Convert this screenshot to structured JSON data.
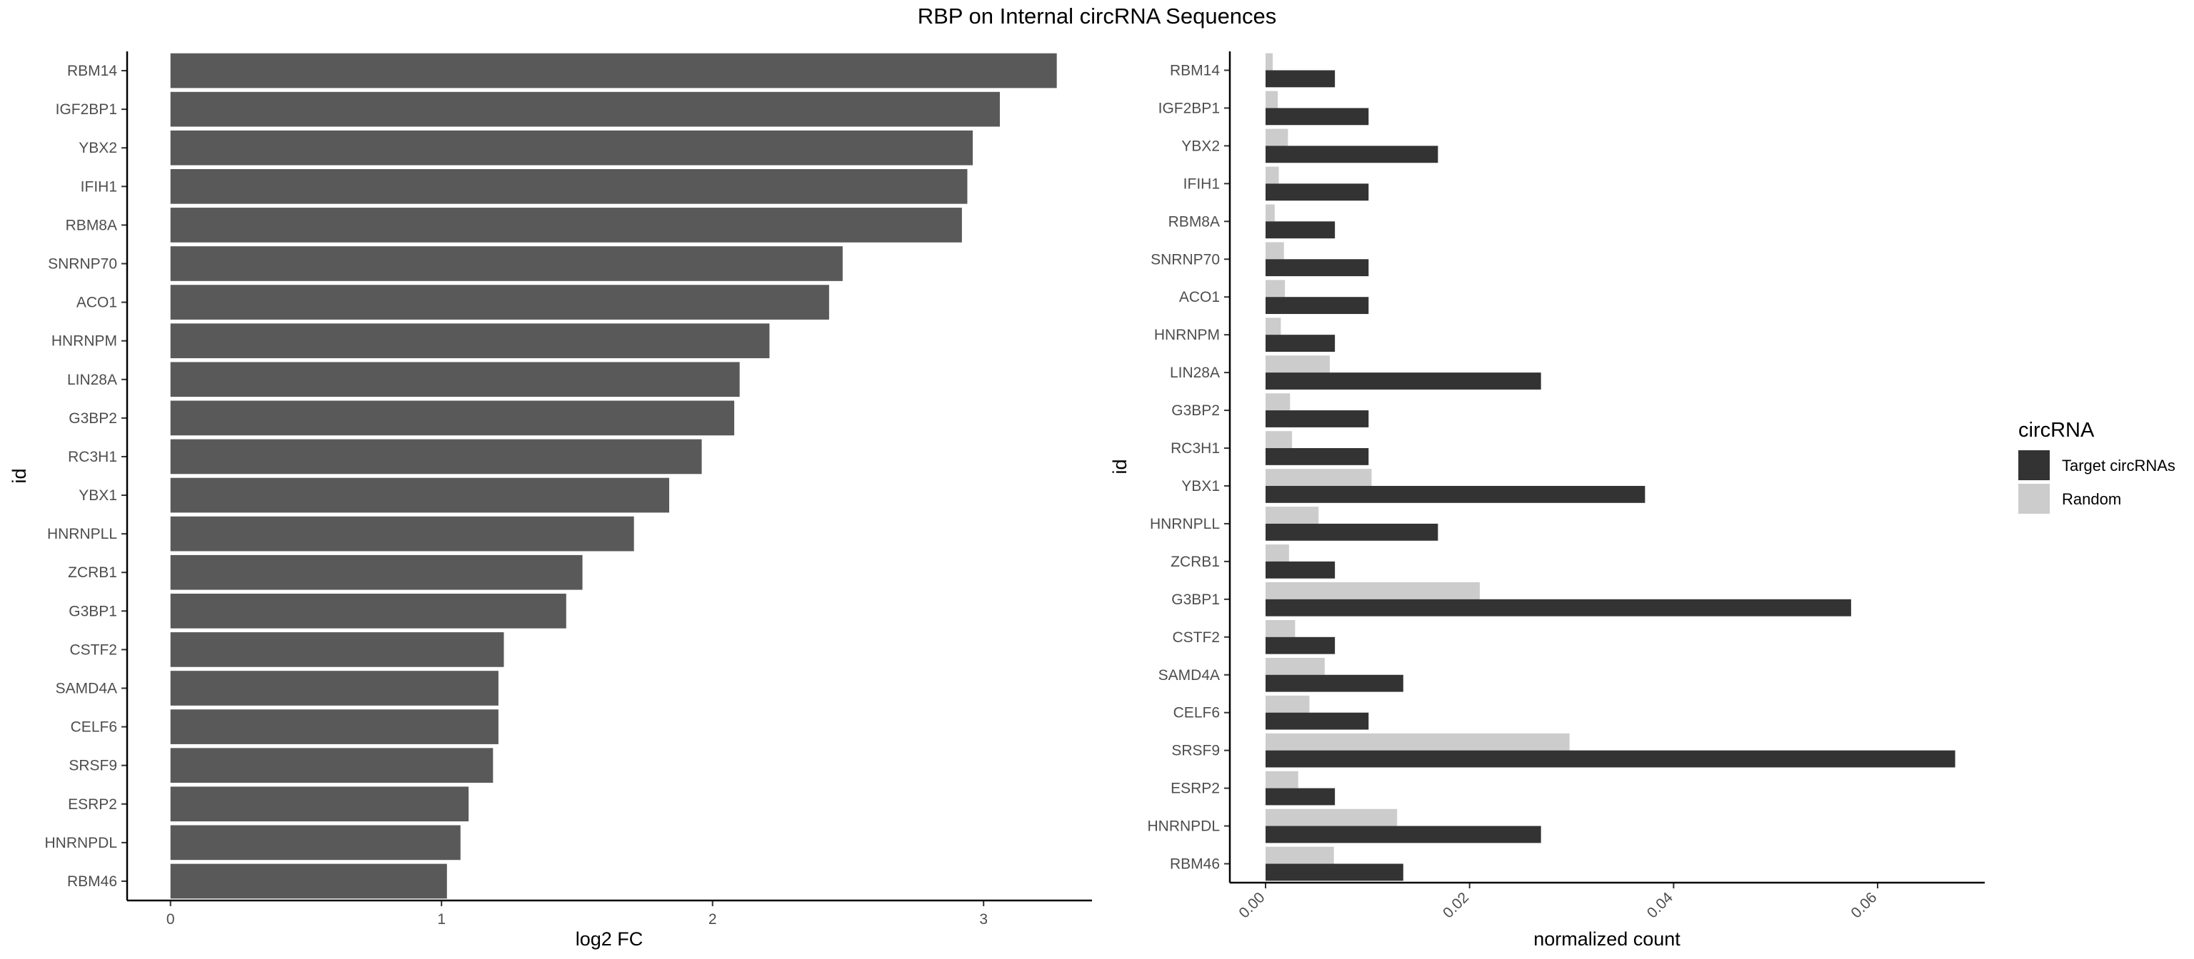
{
  "title": "RBP on Internal circRNA Sequences",
  "chart_data": [
    {
      "type": "bar",
      "orientation": "horizontal",
      "xlabel": "log2 FC",
      "ylabel": "id",
      "xlim": [
        -0.16,
        3.4
      ],
      "xticks": [
        "0",
        "1",
        "2",
        "3"
      ],
      "categories": [
        "RBM14",
        "IGF2BP1",
        "YBX2",
        "IFIH1",
        "RBM8A",
        "SNRNP70",
        "ACO1",
        "HNRNPM",
        "LIN28A",
        "G3BP2",
        "RC3H1",
        "YBX1",
        "HNRNPLL",
        "ZCRB1",
        "G3BP1",
        "CSTF2",
        "SAMD4A",
        "CELF6",
        "SRSF9",
        "ESRP2",
        "HNRNPDL",
        "RBM46"
      ],
      "values": [
        3.27,
        3.06,
        2.96,
        2.94,
        2.92,
        2.48,
        2.43,
        2.21,
        2.1,
        2.08,
        1.96,
        1.84,
        1.71,
        1.52,
        1.46,
        1.23,
        1.21,
        1.21,
        1.19,
        1.1,
        1.07,
        1.02
      ],
      "bar_color": "#595959",
      "grid": false
    },
    {
      "type": "bar",
      "orientation": "horizontal",
      "grouped": true,
      "xlabel": "normalized count",
      "ylabel": "id",
      "xlim": [
        -0.0035,
        0.0705
      ],
      "xticks": [
        "0.00",
        "0.02",
        "0.04",
        "0.06"
      ],
      "categories": [
        "RBM14",
        "IGF2BP1",
        "YBX2",
        "IFIH1",
        "RBM8A",
        "SNRNP70",
        "ACO1",
        "HNRNPM",
        "LIN28A",
        "G3BP2",
        "RC3H1",
        "YBX1",
        "HNRNPLL",
        "ZCRB1",
        "G3BP1",
        "CSTF2",
        "SAMD4A",
        "CELF6",
        "SRSF9",
        "ESRP2",
        "HNRNPDL",
        "RBM46"
      ],
      "series": [
        {
          "name": "Target circRNAs",
          "color": "#333333",
          "values": [
            0.0068,
            0.0101,
            0.0169,
            0.0101,
            0.0068,
            0.0101,
            0.0101,
            0.0068,
            0.027,
            0.0101,
            0.0101,
            0.0372,
            0.0169,
            0.0068,
            0.0574,
            0.0068,
            0.0135,
            0.0101,
            0.0676,
            0.0068,
            0.027,
            0.0135
          ]
        },
        {
          "name": "Random",
          "color": "#cccccc",
          "values": [
            0.0007,
            0.0012,
            0.0022,
            0.0013,
            0.0009,
            0.0018,
            0.0019,
            0.0015,
            0.0063,
            0.0024,
            0.0026,
            0.0104,
            0.0052,
            0.0023,
            0.021,
            0.0029,
            0.0058,
            0.0043,
            0.0298,
            0.0032,
            0.0129,
            0.0067
          ]
        }
      ],
      "legend": {
        "title": "circRNA",
        "position": "right"
      },
      "grid": false
    }
  ]
}
